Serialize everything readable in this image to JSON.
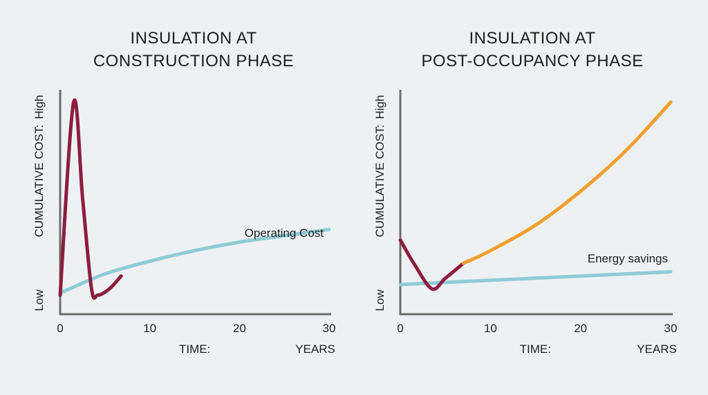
{
  "chart_data": [
    {
      "type": "line",
      "title_lines": [
        "INSULATION AT",
        "CONSTRUCTION PHASE"
      ],
      "xlabel": "TIME:",
      "xunit": "YEARS",
      "ylabel": "CUMULATIVE COST:",
      "y_high_label": "High",
      "y_low_label": "Low",
      "xlim": [
        0,
        30
      ],
      "x_ticks": [
        0,
        10,
        20,
        30
      ],
      "y_scale": "qualitative (Low to High)",
      "series": [
        {
          "color": "#8b1e3f",
          "x": [
            0,
            1.5,
            2.5,
            3.5,
            4.2,
            5.5,
            6.8
          ],
          "y": [
            0.09,
            1.0,
            0.55,
            0.12,
            0.09,
            0.12,
            0.18
          ]
        },
        {
          "name": "Operating Cost",
          "color": "#8fcbd6",
          "x": [
            0,
            5,
            10,
            15,
            20,
            25,
            30
          ],
          "y": [
            0.1,
            0.19,
            0.25,
            0.3,
            0.34,
            0.37,
            0.4
          ]
        }
      ]
    },
    {
      "type": "line",
      "title_lines": [
        "INSULATION AT",
        "POST-OCCUPANCY PHASE"
      ],
      "xlabel": "TIME:",
      "xunit": "YEARS",
      "ylabel": "CUMULATIVE COST:",
      "y_high_label": "High",
      "y_low_label": "Low",
      "xlim": [
        0,
        30
      ],
      "x_ticks": [
        0,
        10,
        20,
        30
      ],
      "y_scale": "qualitative (Low to High)",
      "series": [
        {
          "color": "#8b1e3f",
          "x": [
            0,
            1.5,
            3.5,
            5,
            7
          ],
          "y": [
            0.35,
            0.24,
            0.12,
            0.17,
            0.24
          ]
        },
        {
          "color": "#f0a030",
          "x": [
            7,
            10,
            15,
            20,
            25,
            30
          ],
          "y": [
            0.24,
            0.3,
            0.42,
            0.58,
            0.77,
            1.0
          ]
        },
        {
          "name": "Energy savings",
          "color": "#8fcbd6",
          "x": [
            0,
            10,
            20,
            30
          ],
          "y": [
            0.14,
            0.16,
            0.18,
            0.2
          ]
        }
      ]
    }
  ]
}
